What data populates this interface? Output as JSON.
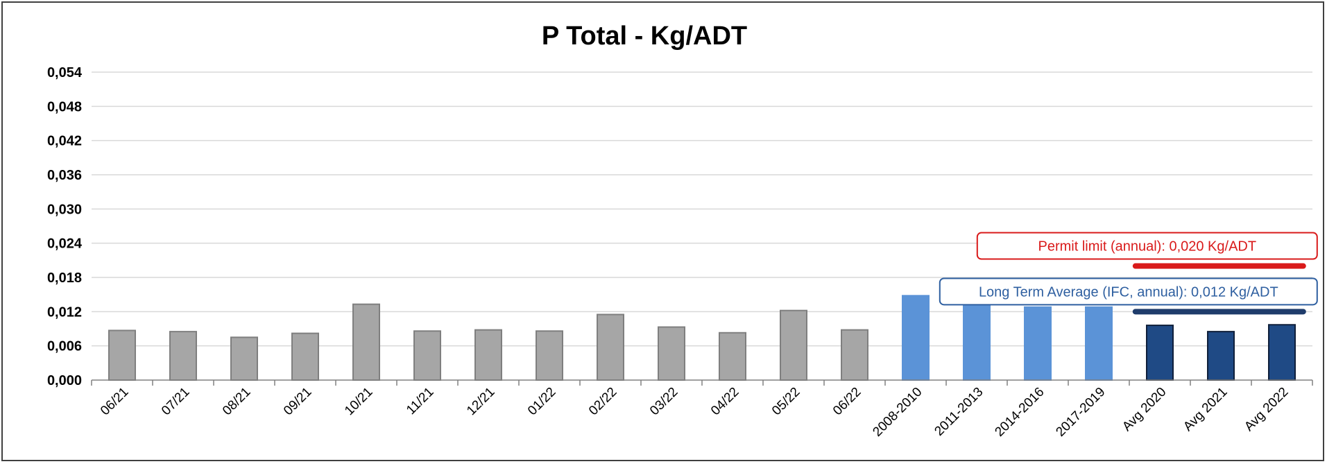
{
  "chart_data": {
    "type": "bar",
    "title": "P Total - Kg/ADT",
    "xlabel": "",
    "ylabel": "",
    "ylim": [
      0,
      0.054
    ],
    "yticks": [
      0.0,
      0.006,
      0.012,
      0.018,
      0.024,
      0.03,
      0.036,
      0.042,
      0.048,
      0.054
    ],
    "ytick_labels": [
      "0,000",
      "0,006",
      "0,012",
      "0,018",
      "0,024",
      "0,030",
      "0,036",
      "0,042",
      "0,048",
      "0,054"
    ],
    "grid": true,
    "categories": [
      "06/21",
      "07/21",
      "08/21",
      "09/21",
      "10/21",
      "11/21",
      "12/21",
      "01/22",
      "02/22",
      "03/22",
      "04/22",
      "05/22",
      "06/22",
      "2008-2010",
      "2011-2013",
      "2014-2016",
      "2017-2019",
      "Avg 2020",
      "Avg 2021",
      "Avg 2022"
    ],
    "values": [
      0.0087,
      0.0085,
      0.0075,
      0.0082,
      0.0133,
      0.0086,
      0.0088,
      0.0086,
      0.0115,
      0.0093,
      0.0083,
      0.0122,
      0.0088,
      0.0148,
      0.0134,
      0.0128,
      0.0128,
      0.0096,
      0.0085,
      0.0097
    ],
    "bar_groups": [
      {
        "from": 0,
        "to": 12,
        "fill": "#a6a6a6",
        "stroke": "#7f7f7f"
      },
      {
        "from": 13,
        "to": 16,
        "fill": "#5b93d7",
        "stroke": "#5b93d7"
      },
      {
        "from": 17,
        "to": 19,
        "fill": "#1f4a85",
        "stroke": "#0f1f3a"
      }
    ],
    "reference_lines": [
      {
        "value": 0.02,
        "from_category": 17,
        "to_category": 19,
        "color": "#d91a1a",
        "label": "Permit limit (annual):  0,020 Kg/ADT"
      },
      {
        "value": 0.012,
        "from_category": 17,
        "to_category": 19,
        "color": "#1f3c6b",
        "label": "Long Term Average (IFC, annual):  0,012 Kg/ADT",
        "label_color": "#2e5fa0"
      }
    ]
  }
}
